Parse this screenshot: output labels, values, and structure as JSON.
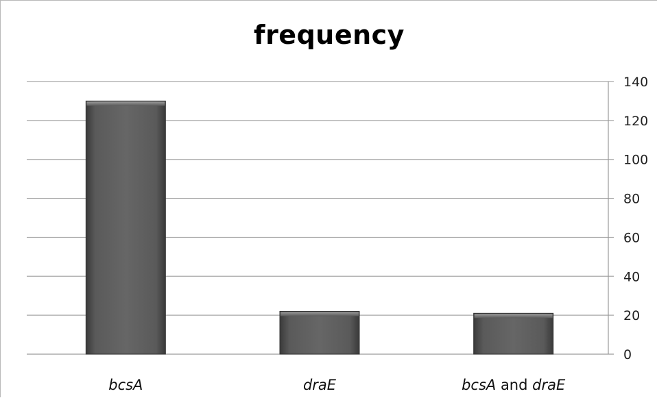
{
  "chart_data": {
    "type": "bar",
    "title": "frequency",
    "categories": [
      "bcsA",
      "draE",
      "bcsA and draE"
    ],
    "category_parts": [
      [
        {
          "text": "bcsA",
          "italic": true
        }
      ],
      [
        {
          "text": "draE",
          "italic": true
        }
      ],
      [
        {
          "text": "bcsA",
          "italic": true
        },
        {
          "text": " and ",
          "italic": false
        },
        {
          "text": "draE",
          "italic": true
        }
      ]
    ],
    "values": [
      130,
      22,
      21
    ],
    "xlabel": "",
    "ylabel": "",
    "ylim": [
      0,
      140
    ],
    "yticks": [
      0,
      20,
      40,
      60,
      80,
      100,
      120,
      140
    ],
    "y_axis_side": "right",
    "grid": true,
    "legend": "none",
    "bar_color": "#595959"
  }
}
